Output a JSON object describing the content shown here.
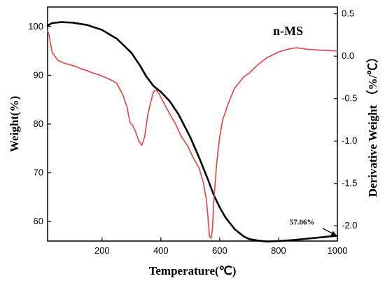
{
  "chart_data": {
    "type": "line",
    "title": "n-MS",
    "xlabel": "Temperature(℃)",
    "ylabel_left": "Weight(%)",
    "ylabel_right": "Derivative Weight （%/℃）",
    "xlim": [
      15,
      1000
    ],
    "ylim_left": [
      56,
      104
    ],
    "ylim_right": [
      -2.18,
      0.58
    ],
    "x_ticks": [
      200,
      400,
      600,
      800,
      1000
    ],
    "y_ticks_left": [
      60,
      70,
      80,
      90,
      100
    ],
    "y_ticks_right": [
      0.5,
      0.0,
      -0.5,
      -1.0,
      -1.5,
      -2.0
    ],
    "y_tick_labels_right": [
      "0.5",
      "0.0",
      "-0.5",
      "-1.0",
      "-1.5",
      "-2.0"
    ],
    "grid": false,
    "series": [
      {
        "color": "#000000",
        "axis": "left",
        "x": [
          15,
          30,
          60,
          100,
          150,
          200,
          250,
          300,
          330,
          350,
          375,
          400,
          430,
          460,
          500,
          530,
          560,
          580,
          600,
          620,
          650,
          680,
          700,
          730,
          760,
          800,
          850,
          900,
          950,
          1000
        ],
        "y": [
          100.2,
          100.7,
          100.9,
          100.8,
          100.3,
          99.3,
          97.5,
          94.6,
          91.9,
          89.8,
          87.8,
          86.6,
          84.7,
          82.0,
          77.3,
          73.1,
          68.6,
          65.4,
          62.9,
          60.8,
          58.5,
          57.0,
          56.4,
          56.1,
          55.9,
          56.0,
          56.2,
          56.5,
          56.8,
          57.1
        ]
      },
      {
        "color": "#e84040",
        "axis": "right",
        "x": [
          15,
          20,
          25,
          30,
          40,
          50,
          70,
          90,
          110,
          130,
          150,
          170,
          190,
          210,
          230,
          250,
          270,
          285,
          295,
          305,
          315,
          325,
          335,
          345,
          355,
          365,
          375,
          385,
          395,
          410,
          430,
          450,
          470,
          490,
          510,
          530,
          545,
          555,
          560,
          565,
          570,
          575,
          580,
          590,
          600,
          610,
          630,
          650,
          680,
          700,
          730,
          760,
          800,
          830,
          860,
          900,
          950,
          1000
        ],
        "y": [
          0.3,
          0.25,
          0.15,
          0.05,
          0.0,
          -0.05,
          -0.08,
          -0.1,
          -0.12,
          -0.15,
          -0.17,
          -0.2,
          -0.22,
          -0.25,
          -0.28,
          -0.32,
          -0.45,
          -0.6,
          -0.78,
          -0.82,
          -0.9,
          -1.0,
          -1.05,
          -0.95,
          -0.7,
          -0.55,
          -0.42,
          -0.4,
          -0.45,
          -0.55,
          -0.68,
          -0.8,
          -0.95,
          -1.05,
          -1.2,
          -1.32,
          -1.5,
          -1.7,
          -1.9,
          -2.12,
          -2.15,
          -2.05,
          -1.7,
          -1.25,
          -0.95,
          -0.75,
          -0.55,
          -0.38,
          -0.25,
          -0.2,
          -0.1,
          -0.02,
          0.05,
          0.08,
          0.1,
          0.08,
          0.07,
          0.06
        ]
      }
    ],
    "annotations": [
      {
        "text": "57.06%",
        "x": 880,
        "y": 59.4,
        "axis": "left"
      }
    ],
    "annotation_arrow": {
      "from": [
        950,
        58.6
      ],
      "to": [
        998,
        57.1
      ]
    }
  }
}
